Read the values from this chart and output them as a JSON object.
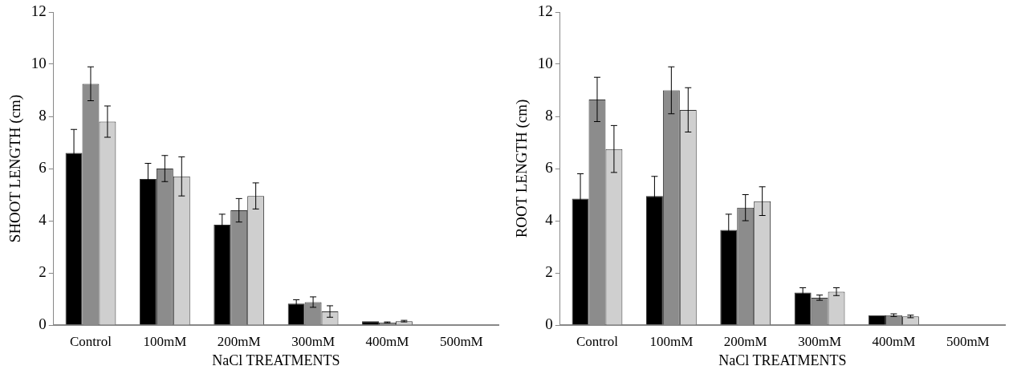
{
  "chart_data": [
    {
      "type": "bar",
      "xlabel": "NaCl TREATMENTS",
      "ylabel": "SHOOT LENGTH (cm)",
      "categories": [
        "Control",
        "100mM",
        "200mM",
        "300mM",
        "400mM",
        "500mM"
      ],
      "ylim": [
        0,
        12
      ],
      "yticks": [
        0,
        2,
        4,
        6,
        8,
        10,
        12
      ],
      "grid": false,
      "legend": false,
      "series": [
        {
          "color": "#000000",
          "values": [
            6.6,
            5.6,
            3.85,
            0.82,
            0.15,
            0
          ],
          "errors": [
            0.9,
            0.6,
            0.4,
            0.15,
            null,
            null
          ]
        },
        {
          "color": "#8c8c8c",
          "values": [
            9.25,
            6.0,
            4.4,
            0.88,
            0.1,
            0
          ],
          "errors": [
            0.65,
            0.5,
            0.45,
            0.2,
            0.02,
            null
          ]
        },
        {
          "color": "#cfcfcf",
          "values": [
            7.8,
            5.7,
            4.95,
            0.52,
            0.15,
            0
          ],
          "errors": [
            0.6,
            0.75,
            0.5,
            0.22,
            0.03,
            null
          ]
        }
      ]
    },
    {
      "type": "bar",
      "xlabel": "NaCl TREATMENTS",
      "ylabel": "ROOT LENGTH (cm)",
      "categories": [
        "Control",
        "100mM",
        "200mM",
        "300mM",
        "400mM",
        "500mM"
      ],
      "ylim": [
        0,
        12
      ],
      "yticks": [
        0,
        2,
        4,
        6,
        8,
        10,
        12
      ],
      "grid": false,
      "legend": false,
      "series": [
        {
          "color": "#000000",
          "values": [
            4.85,
            4.95,
            3.65,
            1.25,
            0.38,
            0
          ],
          "errors": [
            0.95,
            0.75,
            0.6,
            0.18,
            null,
            null
          ]
        },
        {
          "color": "#8c8c8c",
          "values": [
            8.65,
            9.0,
            4.5,
            1.05,
            0.38,
            0
          ],
          "errors": [
            0.85,
            0.9,
            0.5,
            0.1,
            0.05,
            null
          ]
        },
        {
          "color": "#cfcfcf",
          "values": [
            6.75,
            8.25,
            4.75,
            1.28,
            0.33,
            0
          ],
          "errors": [
            0.9,
            0.85,
            0.55,
            0.15,
            0.05,
            null
          ]
        }
      ]
    }
  ]
}
